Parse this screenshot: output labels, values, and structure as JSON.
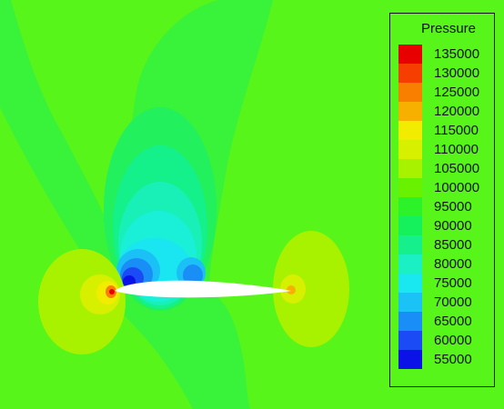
{
  "legend": {
    "title": "Pressure",
    "entries": [
      {
        "label": "135000",
        "color": "#e80000"
      },
      {
        "label": "130000",
        "color": "#f63e00"
      },
      {
        "label": "125000",
        "color": "#f97f00"
      },
      {
        "label": "120000",
        "color": "#f7b000"
      },
      {
        "label": "115000",
        "color": "#f2ec00"
      },
      {
        "label": "110000",
        "color": "#d7f000"
      },
      {
        "label": "105000",
        "color": "#a8f200"
      },
      {
        "label": "100000",
        "color": "#68f202"
      },
      {
        "label": "95000",
        "color": "#2cf329"
      },
      {
        "label": "90000",
        "color": "#14f15c"
      },
      {
        "label": "85000",
        "color": "#15f08c"
      },
      {
        "label": "80000",
        "color": "#1af0c4"
      },
      {
        "label": "75000",
        "color": "#1ae8f1"
      },
      {
        "label": "70000",
        "color": "#1bc2f6"
      },
      {
        "label": "65000",
        "color": "#1a8ef7"
      },
      {
        "label": "60000",
        "color": "#1a4bf4"
      },
      {
        "label": "55000",
        "color": "#0a12e8"
      }
    ]
  }
}
